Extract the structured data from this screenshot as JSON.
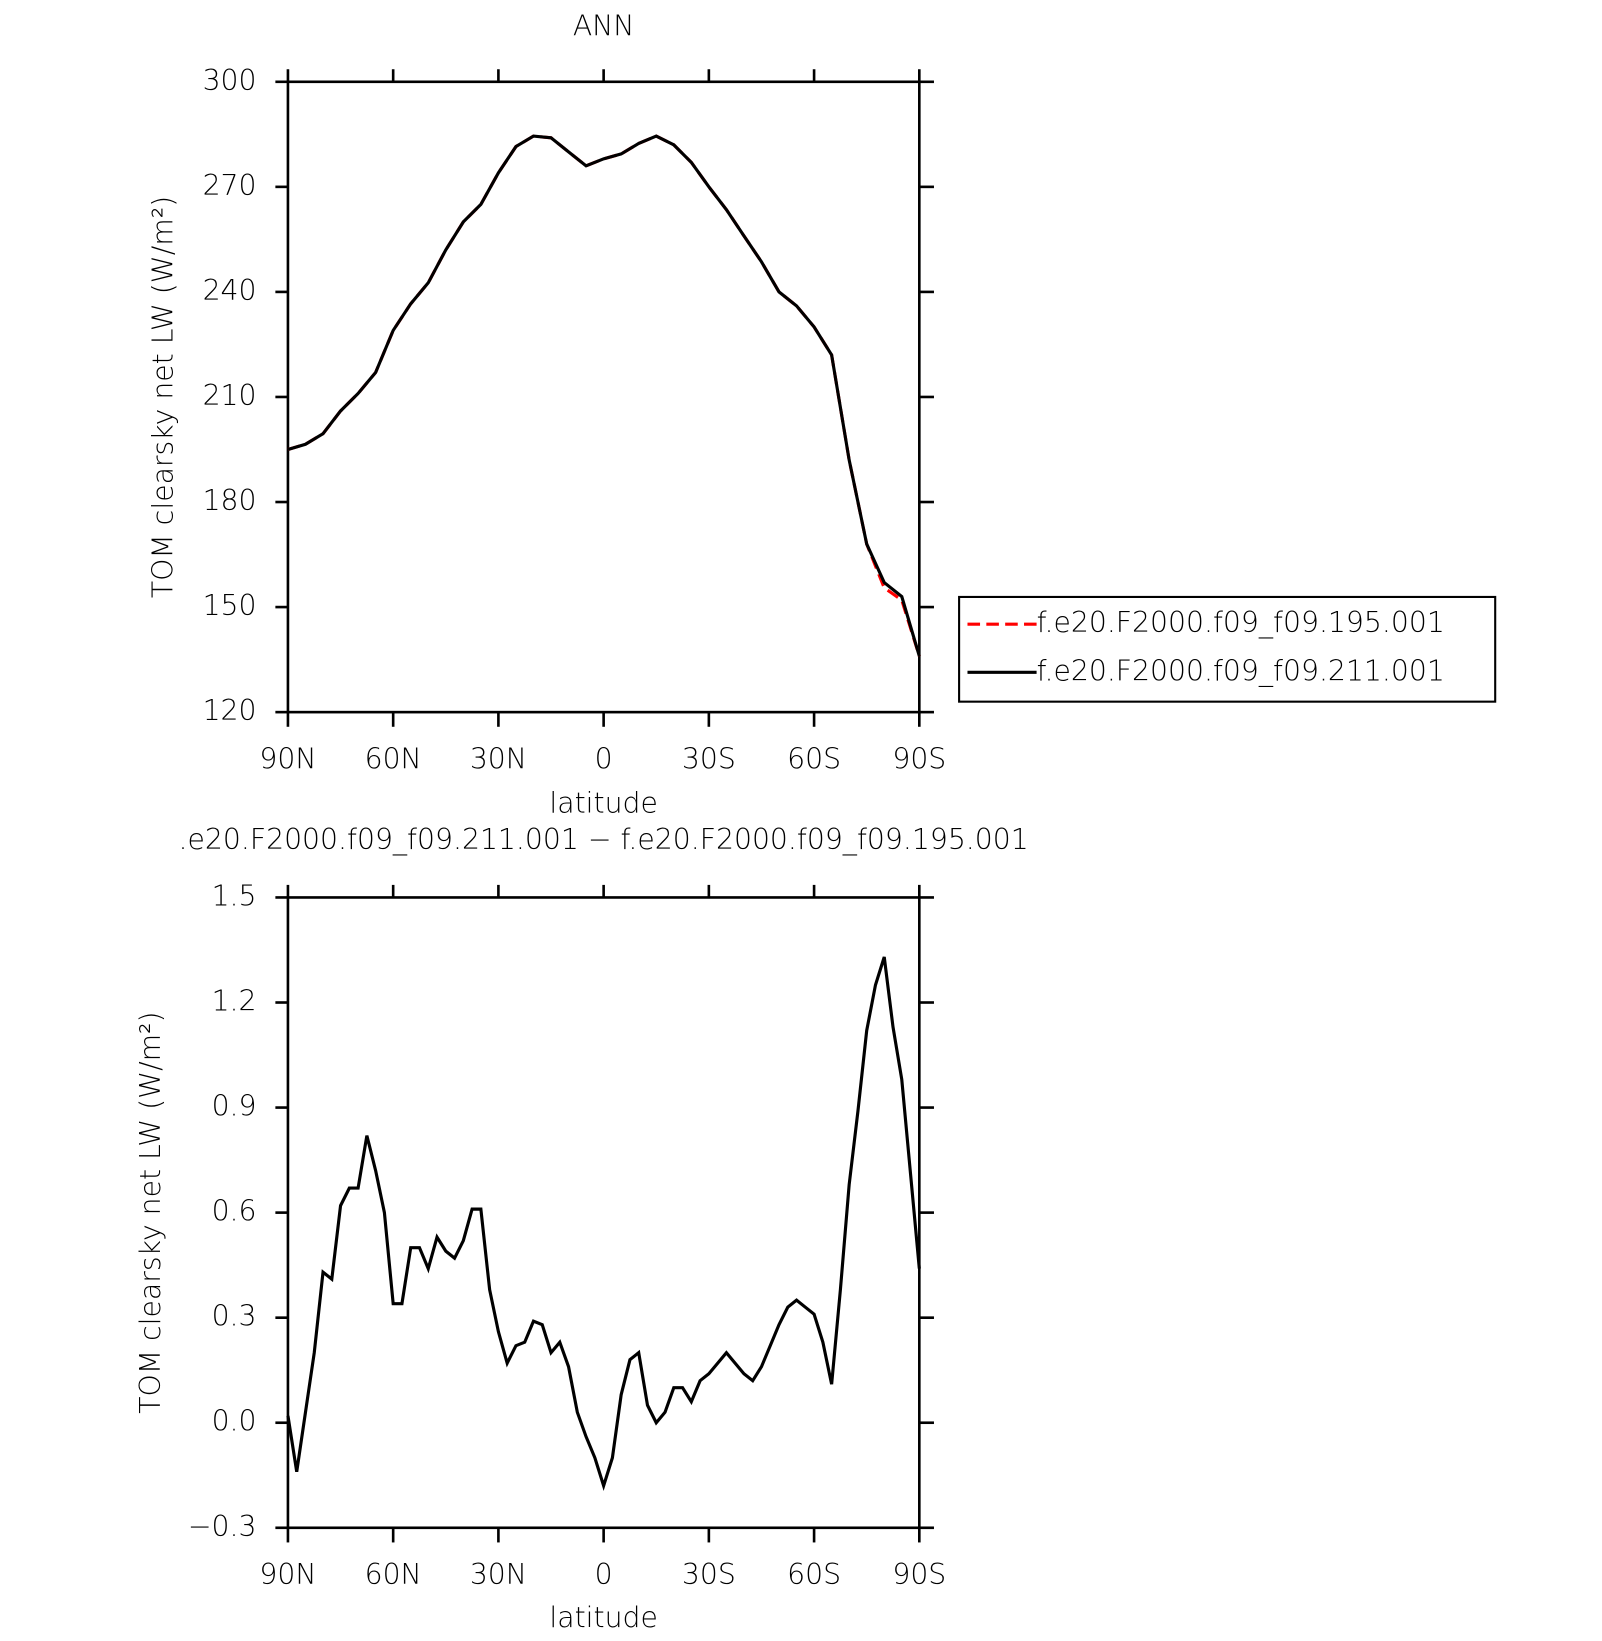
{
  "chart_data": [
    {
      "type": "line",
      "title": "ANN",
      "xlabel": "latitude",
      "ylabel": "TOM clearsky net LW (W/m²)",
      "xlim": [
        90,
        -90
      ],
      "xticks": [
        {
          "value": 90,
          "label": "90N"
        },
        {
          "value": 60,
          "label": "60N"
        },
        {
          "value": 30,
          "label": "30N"
        },
        0,
        {
          "value": -30,
          "label": "30S"
        },
        {
          "value": -60,
          "label": "60S"
        },
        {
          "value": -90,
          "label": "90S"
        }
      ],
      "ylim": [
        120,
        300
      ],
      "yticks": [
        120,
        150,
        180,
        210,
        240,
        270,
        300
      ],
      "legend": "right",
      "x": [
        90,
        85,
        80,
        75,
        70,
        65,
        60,
        55,
        50,
        45,
        40,
        35,
        30,
        25,
        20,
        15,
        10,
        5,
        0,
        -5,
        -10,
        -15,
        -20,
        -25,
        -30,
        -35,
        -40,
        -45,
        -50,
        -55,
        -60,
        -65,
        -70,
        -75,
        -80,
        -85,
        -90
      ],
      "series": [
        {
          "name": "f.e20.F2000.f09_f09.195.001",
          "color": "#ff0000",
          "dash": true,
          "values": [
            195,
            196.5,
            199.5,
            206,
            211,
            217,
            229,
            236.6,
            242.6,
            252,
            260,
            265,
            274,
            281.5,
            284.5,
            284,
            280,
            276,
            278,
            279.4,
            282.4,
            284.5,
            282,
            277,
            270,
            263.5,
            256,
            248.6,
            240,
            236,
            230,
            222,
            192,
            168,
            155.5,
            152,
            136
          ]
        },
        {
          "name": "f.e20.F2000.f09_f09.211.001",
          "color": "#000000",
          "dash": false,
          "values": [
            195,
            196.5,
            199.5,
            206,
            211,
            217,
            229,
            236.6,
            242.6,
            252,
            260,
            265,
            274,
            281.5,
            284.5,
            284,
            280,
            276,
            278,
            279.4,
            282.4,
            284.5,
            282,
            277,
            270,
            263.5,
            256,
            248.6,
            240,
            236,
            230,
            222,
            192,
            168,
            157,
            153,
            136
          ]
        }
      ]
    },
    {
      "type": "line",
      "title": ".e20.F2000.f09_f09.211.001 − f.e20.F2000.f09_f09.195.001",
      "xlabel": "latitude",
      "ylabel": "TOM clearsky net LW (W/m²)",
      "xlim": [
        90,
        -90
      ],
      "xticks": [
        {
          "value": 90,
          "label": "90N"
        },
        {
          "value": 60,
          "label": "60N"
        },
        {
          "value": 30,
          "label": "30N"
        },
        0,
        {
          "value": -30,
          "label": "30S"
        },
        {
          "value": -60,
          "label": "60S"
        },
        {
          "value": -90,
          "label": "90S"
        }
      ],
      "ylim": [
        -0.3,
        1.5
      ],
      "yticks": [
        {
          "value": -0.3,
          "label": "−0.3"
        },
        {
          "value": 0,
          "label": "0.0"
        },
        0.3,
        0.6,
        0.9,
        1.2,
        1.5
      ],
      "x": [
        90,
        87.5,
        85,
        82.5,
        80,
        77.5,
        75,
        72.5,
        70,
        67.5,
        65,
        62.5,
        60,
        57.5,
        55,
        52.5,
        50,
        47.5,
        45,
        42.5,
        40,
        37.5,
        35,
        32.5,
        30,
        27.5,
        25,
        22.5,
        20,
        17.5,
        15,
        12.5,
        10,
        7.5,
        5,
        2.5,
        0,
        -2.5,
        -5,
        -7.5,
        -10,
        -12.5,
        -15,
        -17.5,
        -20,
        -22.5,
        -25,
        -27.5,
        -30,
        -32.5,
        -35,
        -37.5,
        -40,
        -42.5,
        -45,
        -47.5,
        -50,
        -52.5,
        -55,
        -57.5,
        -60,
        -62.5,
        -65,
        -67.5,
        -70,
        -72.5,
        -75,
        -77.5,
        -80,
        -82.5,
        -85,
        -87.5,
        -90
      ],
      "series": [
        {
          "color": "#000000",
          "dash": false,
          "values": [
            0.02,
            -0.14,
            0.03,
            0.2,
            0.43,
            0.41,
            0.62,
            0.67,
            0.67,
            0.82,
            0.72,
            0.6,
            0.34,
            0.34,
            0.5,
            0.5,
            0.44,
            0.53,
            0.49,
            0.47,
            0.52,
            0.61,
            0.61,
            0.38,
            0.26,
            0.17,
            0.22,
            0.23,
            0.29,
            0.28,
            0.2,
            0.23,
            0.16,
            0.03,
            -0.04,
            -0.1,
            -0.18,
            -0.1,
            0.08,
            0.18,
            0.2,
            0.05,
            0,
            0.03,
            0.1,
            0.1,
            0.06,
            0.12,
            0.14,
            0.17,
            0.2,
            0.17,
            0.14,
            0.12,
            0.16,
            0.22,
            0.28,
            0.33,
            0.35,
            0.33,
            0.31,
            0.23,
            0.11,
            0.38,
            0.68,
            0.89,
            1.12,
            1.25,
            1.33,
            1.13,
            0.98,
            0.71,
            0.44
          ]
        }
      ]
    }
  ]
}
